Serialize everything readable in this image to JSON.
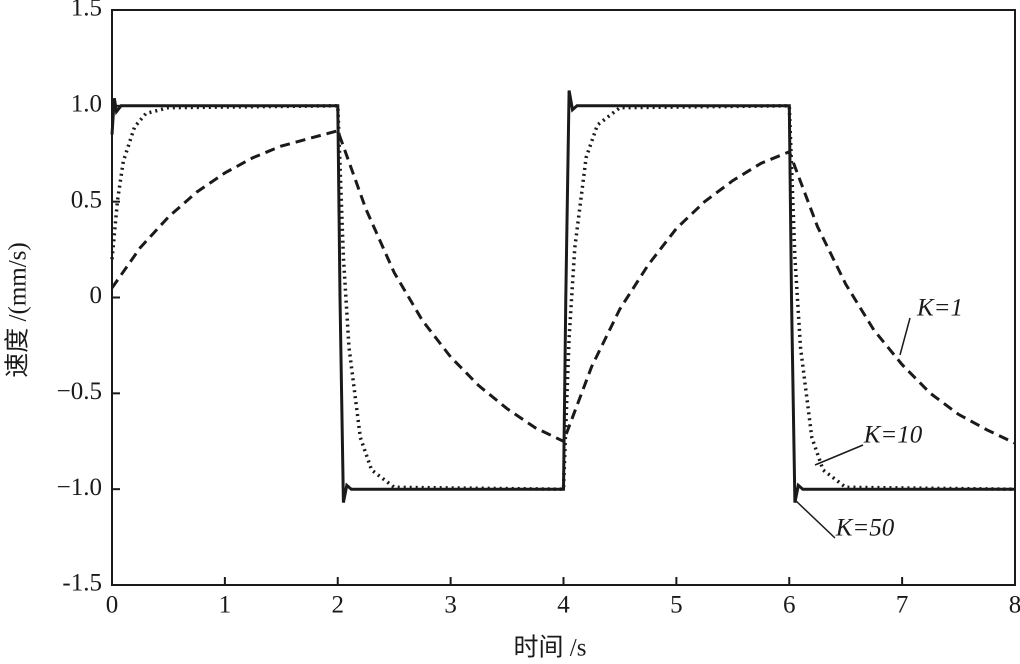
{
  "chart_data": {
    "type": "line",
    "xlabel": "时间 /s",
    "ylabel": "速度 /(mm/s)",
    "xlim": [
      0,
      8
    ],
    "ylim": [
      -1.5,
      1.5
    ],
    "xticks": [
      0,
      1,
      2,
      3,
      4,
      5,
      6,
      7,
      8
    ],
    "yticks": [
      -1.5,
      {
        "value": -1.0,
        "label": "−1.0"
      },
      {
        "value": -0.5,
        "label": "−0.5"
      },
      0,
      0.5,
      {
        "value": 1.0,
        "label": "1.0"
      },
      1.5
    ],
    "series": [
      {
        "name": "K=1",
        "color": "#1a1a1a",
        "style": "dashed",
        "x": [
          0,
          0.25,
          0.5,
          0.75,
          1,
          1.25,
          1.5,
          1.75,
          2,
          2.25,
          2.5,
          2.75,
          3,
          3.25,
          3.5,
          3.75,
          4,
          4.25,
          4.5,
          4.75,
          5,
          5.25,
          5.5,
          5.75,
          6,
          6.25,
          6.5,
          6.75,
          7,
          7.25,
          7.5,
          7.75,
          8
        ],
        "values": [
          0.05,
          0.26,
          0.42,
          0.55,
          0.65,
          0.73,
          0.79,
          0.83,
          0.87,
          0.46,
          0.13,
          -0.12,
          -0.31,
          -0.46,
          -0.58,
          -0.68,
          -0.75,
          -0.36,
          -0.06,
          0.17,
          0.36,
          0.5,
          0.61,
          0.7,
          0.76,
          0.37,
          0.07,
          -0.17,
          -0.35,
          -0.5,
          -0.61,
          -0.69,
          -0.76
        ]
      },
      {
        "name": "K=10",
        "color": "#1a1a1a",
        "style": "dotted",
        "x": [
          0,
          0.05,
          0.1,
          0.2,
          0.3,
          0.5,
          2,
          2.05,
          2.1,
          2.2,
          2.3,
          2.5,
          4,
          4.05,
          4.1,
          4.2,
          4.3,
          4.5,
          6,
          6.05,
          6.1,
          6.2,
          6.3,
          6.5,
          8
        ],
        "values": [
          0.2,
          0.51,
          0.71,
          0.89,
          0.96,
          0.99,
          1,
          0.21,
          -0.26,
          -0.73,
          -0.9,
          -0.99,
          -1,
          -0.21,
          0.26,
          0.73,
          0.9,
          0.99,
          1,
          0.21,
          -0.26,
          -0.73,
          -0.9,
          -0.99,
          -1
        ]
      },
      {
        "name": "K=50",
        "color": "#1a1a1a",
        "style": "solid",
        "x": [
          0,
          0.02,
          0.04,
          0.08,
          2,
          2.02,
          2.05,
          2.08,
          2.12,
          4,
          4.02,
          4.05,
          4.08,
          4.12,
          6,
          6.02,
          6.05,
          6.08,
          6.12,
          8
        ],
        "values": [
          0.85,
          1.04,
          0.97,
          1.0,
          1,
          0,
          -1.07,
          -0.98,
          -1,
          -1,
          0,
          1.08,
          0.98,
          1,
          1,
          0,
          -1.07,
          -0.98,
          -1,
          -1
        ]
      }
    ]
  }
}
